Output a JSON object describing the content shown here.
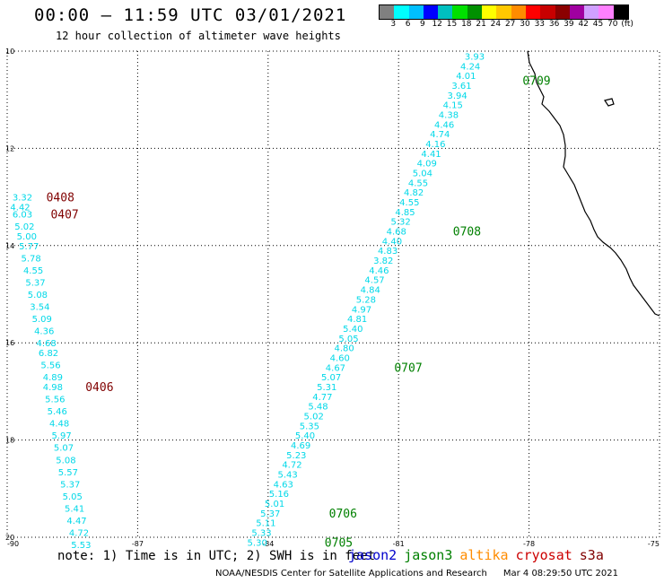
{
  "header": {
    "title": "00:00 – 11:59 UTC 03/01/2021",
    "subtitle": "12 hour collection of altimeter wave heights"
  },
  "colorbar": {
    "colors": [
      "#808080",
      "#00ffff",
      "#00bfff",
      "#0000ff",
      "#00c0c0",
      "#00e000",
      "#009000",
      "#ffff00",
      "#ffc800",
      "#ff8c00",
      "#ff0000",
      "#c80000",
      "#8b0000",
      "#a000a0",
      "#d0a0ff",
      "#ff80ff",
      "#000000"
    ],
    "labels": [
      "3",
      "6",
      "9",
      "12",
      "15",
      "18",
      "21",
      "24",
      "27",
      "30",
      "33",
      "36",
      "39",
      "42",
      "45",
      "70",
      "(ft)"
    ]
  },
  "map": {
    "lon_range": [
      -90,
      -75
    ],
    "lat_range": [
      10,
      20
    ],
    "lon_ticks": [
      "-90",
      "-87",
      "-84",
      "-81",
      "-78",
      "-75"
    ],
    "lat_ticks": [
      "10",
      "12",
      "14",
      "16",
      "18",
      "20"
    ],
    "grid": "dotted",
    "coastline_color": "#000000",
    "track_value_color": "#00d8e8",
    "time_label_colors": {
      "jason3": "#008000",
      "cryosat": "#800000"
    },
    "tracks": [
      {
        "satellite": "jason3",
        "points": [
          {
            "lon": -79.25,
            "lat": 10.1,
            "v": "3.93"
          },
          {
            "lon": -79.35,
            "lat": 10.3,
            "v": "4.24"
          },
          {
            "lon": -79.45,
            "lat": 10.5,
            "v": "4.01"
          },
          {
            "lon": -79.55,
            "lat": 10.7,
            "v": "3.61"
          },
          {
            "lon": -79.65,
            "lat": 10.9,
            "v": "3.94"
          },
          {
            "lon": -79.75,
            "lat": 11.1,
            "v": "4.15"
          },
          {
            "lon": -79.85,
            "lat": 11.3,
            "v": "4.38"
          },
          {
            "lon": -79.95,
            "lat": 11.5,
            "v": "4.46"
          },
          {
            "lon": -80.05,
            "lat": 11.7,
            "v": "4.74"
          },
          {
            "lon": -80.15,
            "lat": 11.9,
            "v": "4.16"
          },
          {
            "lon": -80.25,
            "lat": 12.1,
            "v": "4.41"
          },
          {
            "lon": -80.35,
            "lat": 12.3,
            "v": "4.09"
          },
          {
            "lon": -80.45,
            "lat": 12.5,
            "v": "5.04"
          },
          {
            "lon": -80.55,
            "lat": 12.7,
            "v": "4.55"
          },
          {
            "lon": -80.65,
            "lat": 12.9,
            "v": "4.82"
          },
          {
            "lon": -80.75,
            "lat": 13.1,
            "v": "4.55"
          },
          {
            "lon": -80.85,
            "lat": 13.3,
            "v": "4.85"
          },
          {
            "lon": -80.95,
            "lat": 13.5,
            "v": "5.32"
          },
          {
            "lon": -81.05,
            "lat": 13.7,
            "v": "4.68"
          },
          {
            "lon": -81.15,
            "lat": 13.9,
            "v": "4.40"
          },
          {
            "lon": -81.25,
            "lat": 14.1,
            "v": "4.83"
          },
          {
            "lon": -81.35,
            "lat": 14.3,
            "v": "3.82"
          },
          {
            "lon": -81.45,
            "lat": 14.5,
            "v": "4.46"
          },
          {
            "lon": -81.55,
            "lat": 14.7,
            "v": "4.57"
          },
          {
            "lon": -81.65,
            "lat": 14.9,
            "v": "4.84"
          },
          {
            "lon": -81.75,
            "lat": 15.1,
            "v": "5.28"
          },
          {
            "lon": -81.85,
            "lat": 15.3,
            "v": "4.97"
          },
          {
            "lon": -81.95,
            "lat": 15.5,
            "v": "4.81"
          },
          {
            "lon": -82.05,
            "lat": 15.7,
            "v": "5.40"
          },
          {
            "lon": -82.15,
            "lat": 15.9,
            "v": "5.05"
          },
          {
            "lon": -82.25,
            "lat": 16.1,
            "v": "4.80"
          },
          {
            "lon": -82.35,
            "lat": 16.3,
            "v": "4.60"
          },
          {
            "lon": -82.45,
            "lat": 16.5,
            "v": "4.67"
          },
          {
            "lon": -82.55,
            "lat": 16.7,
            "v": "5.07"
          },
          {
            "lon": -82.65,
            "lat": 16.9,
            "v": "5.31"
          },
          {
            "lon": -82.75,
            "lat": 17.1,
            "v": "4.77"
          },
          {
            "lon": -82.85,
            "lat": 17.3,
            "v": "5.48"
          },
          {
            "lon": -82.95,
            "lat": 17.5,
            "v": "5.02"
          },
          {
            "lon": -83.05,
            "lat": 17.7,
            "v": "5.35"
          },
          {
            "lon": -83.15,
            "lat": 17.9,
            "v": "5.40"
          },
          {
            "lon": -83.25,
            "lat": 18.1,
            "v": "4.69"
          },
          {
            "lon": -83.35,
            "lat": 18.3,
            "v": "5.23"
          },
          {
            "lon": -83.45,
            "lat": 18.5,
            "v": "4.72"
          },
          {
            "lon": -83.55,
            "lat": 18.7,
            "v": "5.43"
          },
          {
            "lon": -83.65,
            "lat": 18.9,
            "v": "4.63"
          },
          {
            "lon": -83.75,
            "lat": 19.1,
            "v": "5.16"
          },
          {
            "lon": -83.85,
            "lat": 19.3,
            "v": "5.01"
          },
          {
            "lon": -83.95,
            "lat": 19.5,
            "v": "5.37"
          },
          {
            "lon": -84.05,
            "lat": 19.7,
            "v": "5.11"
          },
          {
            "lon": -84.15,
            "lat": 19.9,
            "v": "5.33"
          },
          {
            "lon": -84.25,
            "lat": 20.1,
            "v": "5.30"
          }
        ],
        "times": [
          {
            "lon": -78.15,
            "lat": 10.6,
            "t": "0709"
          },
          {
            "lon": -79.75,
            "lat": 13.7,
            "t": "0708"
          },
          {
            "lon": -81.1,
            "lat": 16.5,
            "t": "0707"
          },
          {
            "lon": -82.6,
            "lat": 19.5,
            "t": "0706"
          },
          {
            "lon": -82.7,
            "lat": 20.1,
            "t": "0705"
          }
        ]
      },
      {
        "satellite": "cryosat",
        "points": [
          {
            "lon": -89.65,
            "lat": 13.0,
            "v": "3.32"
          },
          {
            "lon": -89.7,
            "lat": 13.2,
            "v": "4.42"
          },
          {
            "lon": -89.65,
            "lat": 13.35,
            "v": "6.03"
          },
          {
            "lon": -89.6,
            "lat": 13.6,
            "v": "5.02"
          },
          {
            "lon": -89.55,
            "lat": 13.8,
            "v": "5.00"
          },
          {
            "lon": -89.5,
            "lat": 14.0,
            "v": "5.77"
          },
          {
            "lon": -89.45,
            "lat": 14.25,
            "v": "5.78"
          },
          {
            "lon": -89.4,
            "lat": 14.5,
            "v": "4.55"
          },
          {
            "lon": -89.35,
            "lat": 14.75,
            "v": "5.37"
          },
          {
            "lon": -89.3,
            "lat": 15.0,
            "v": "5.08"
          },
          {
            "lon": -89.25,
            "lat": 15.25,
            "v": "3.54"
          },
          {
            "lon": -89.2,
            "lat": 15.5,
            "v": "5.09"
          },
          {
            "lon": -89.15,
            "lat": 15.75,
            "v": "4.36"
          },
          {
            "lon": -89.1,
            "lat": 16.0,
            "v": "4.68"
          },
          {
            "lon": -89.05,
            "lat": 16.2,
            "v": "6.82"
          },
          {
            "lon": -89.0,
            "lat": 16.45,
            "v": "5.56"
          },
          {
            "lon": -88.95,
            "lat": 16.7,
            "v": "4.89"
          },
          {
            "lon": -88.95,
            "lat": 16.9,
            "v": "4.98"
          },
          {
            "lon": -88.9,
            "lat": 17.15,
            "v": "5.56"
          },
          {
            "lon": -88.85,
            "lat": 17.4,
            "v": "5.46"
          },
          {
            "lon": -88.8,
            "lat": 17.65,
            "v": "4.48"
          },
          {
            "lon": -88.75,
            "lat": 17.9,
            "v": "5.97"
          },
          {
            "lon": -88.7,
            "lat": 18.15,
            "v": "5.07"
          },
          {
            "lon": -88.65,
            "lat": 18.4,
            "v": "5.08"
          },
          {
            "lon": -88.6,
            "lat": 18.65,
            "v": "5.57"
          },
          {
            "lon": -88.55,
            "lat": 18.9,
            "v": "5.37"
          },
          {
            "lon": -88.5,
            "lat": 19.15,
            "v": "5.05"
          },
          {
            "lon": -88.45,
            "lat": 19.4,
            "v": "5.41"
          },
          {
            "lon": -88.4,
            "lat": 19.65,
            "v": "4.47"
          },
          {
            "lon": -88.35,
            "lat": 19.9,
            "v": "4.72"
          },
          {
            "lon": -88.3,
            "lat": 20.15,
            "v": "5.53"
          }
        ],
        "times": [
          {
            "lon": -89.1,
            "lat": 13.0,
            "t": "0408"
          },
          {
            "lon": -89.0,
            "lat": 13.35,
            "t": "0407"
          },
          {
            "lon": -88.2,
            "lat": 16.9,
            "t": "0406"
          }
        ]
      }
    ]
  },
  "footer": {
    "note": "note: 1) Time is in UTC; 2) SWH is in feet",
    "satellites": [
      {
        "name": "jason2",
        "color": "#0000cc"
      },
      {
        "name": "jason3",
        "color": "#008000"
      },
      {
        "name": "altika",
        "color": "#ff8c00"
      },
      {
        "name": "cryosat",
        "color": "#cc0000"
      },
      {
        "name": "s3a",
        "color": "#800000"
      }
    ],
    "credit": "NOAA/NESDIS Center for Satellite Applications and Research",
    "timestamp": "Mar  4 08:29:50 UTC 2021"
  }
}
